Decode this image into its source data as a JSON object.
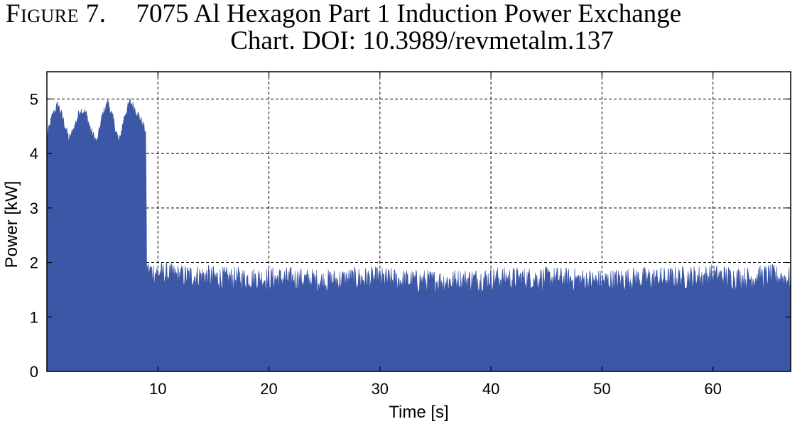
{
  "caption": {
    "prefix": "Figure 7.",
    "title": "7075 Al Hexagon Part 1 Induction Power Exchange",
    "line2": "Chart. DOI: 10.3989/revmetalm.137"
  },
  "chart_data": {
    "type": "area",
    "xlabel": "Time [s]",
    "ylabel": "Power [kW]",
    "xlim": [
      0,
      67
    ],
    "ylim": [
      0,
      5.5
    ],
    "xticks": [
      10,
      20,
      30,
      40,
      50,
      60
    ],
    "yticks": [
      0,
      1,
      2,
      3,
      4,
      5
    ],
    "grid": true,
    "color": "#3b57a6",
    "series": [
      {
        "x": [
          0,
          0.5,
          1,
          1.5,
          2,
          2.5,
          3,
          3.5,
          4,
          4.5,
          5,
          5.5,
          6,
          6.5,
          7,
          7.5,
          8,
          8.5,
          8.9,
          9.0,
          10,
          12,
          14,
          16,
          18,
          20,
          22,
          25,
          28,
          30,
          33,
          36,
          40,
          43,
          46,
          50,
          53,
          56,
          60,
          63,
          65,
          67
        ],
        "values": [
          4.3,
          4.7,
          4.9,
          4.6,
          4.25,
          4.5,
          4.8,
          4.75,
          4.4,
          4.2,
          4.7,
          4.95,
          4.6,
          4.2,
          4.7,
          4.95,
          4.8,
          4.6,
          4.4,
          1.85,
          1.8,
          1.75,
          1.75,
          1.7,
          1.7,
          1.7,
          1.7,
          1.65,
          1.7,
          1.7,
          1.65,
          1.65,
          1.7,
          1.7,
          1.7,
          1.65,
          1.7,
          1.7,
          1.75,
          1.7,
          1.75,
          1.7
        ]
      }
    ]
  }
}
